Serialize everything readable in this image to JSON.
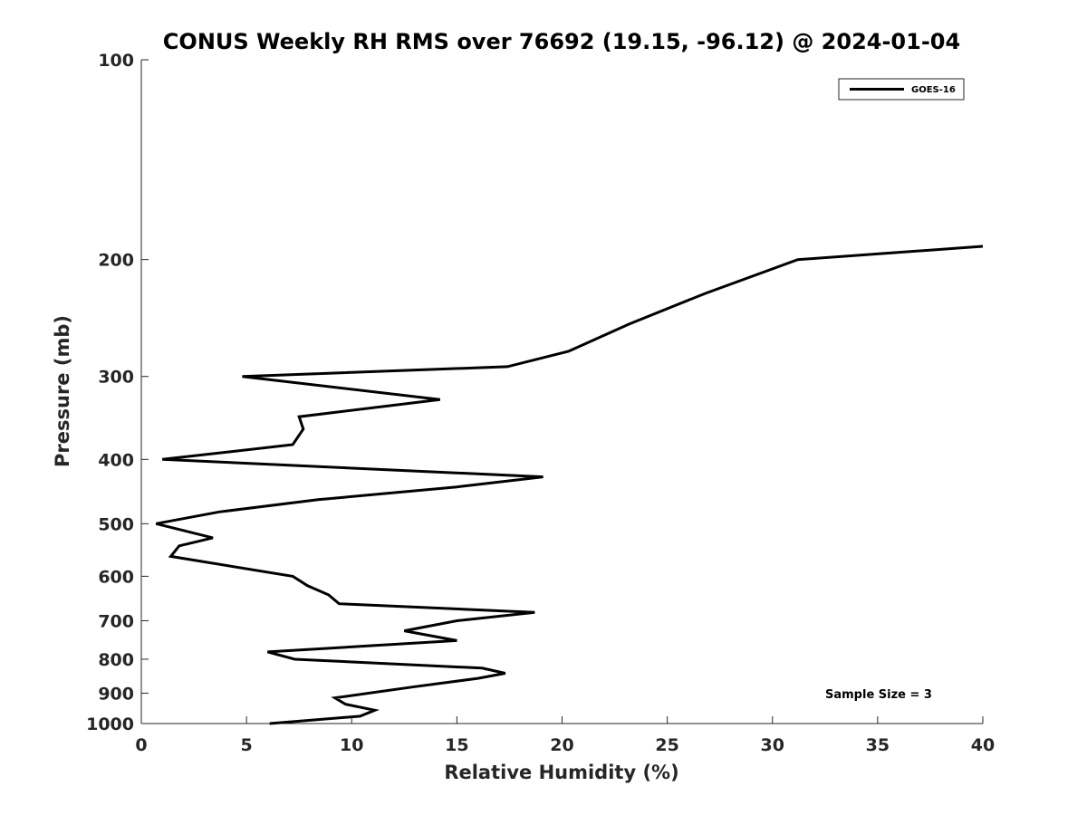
{
  "chart_data": {
    "type": "line",
    "title": "CONUS Weekly RH RMS over 76692 (19.15, -96.12) @ 2024-01-04",
    "xlabel": "Relative Humidity (%)",
    "ylabel": "Pressure (mb)",
    "xlim": [
      0,
      40
    ],
    "ylim": [
      100,
      1000
    ],
    "y_scale": "log",
    "y_reversed": true,
    "grid": false,
    "legend_position": "top-right",
    "xticks": [
      0,
      5,
      10,
      15,
      20,
      25,
      30,
      35,
      40
    ],
    "yticks": [
      100,
      200,
      300,
      400,
      500,
      600,
      700,
      800,
      900,
      1000
    ],
    "series": [
      {
        "name": "GOES-16",
        "color": "#000000",
        "points": [
          {
            "x": 40.0,
            "y": 191
          },
          {
            "x": 31.2,
            "y": 200
          },
          {
            "x": 26.8,
            "y": 225
          },
          {
            "x": 23.2,
            "y": 250
          },
          {
            "x": 20.3,
            "y": 275
          },
          {
            "x": 17.4,
            "y": 290
          },
          {
            "x": 4.8,
            "y": 300
          },
          {
            "x": 14.2,
            "y": 325
          },
          {
            "x": 7.5,
            "y": 345
          },
          {
            "x": 7.7,
            "y": 360
          },
          {
            "x": 7.2,
            "y": 380
          },
          {
            "x": 1.0,
            "y": 400
          },
          {
            "x": 19.1,
            "y": 425
          },
          {
            "x": 15.0,
            "y": 440
          },
          {
            "x": 8.4,
            "y": 460
          },
          {
            "x": 3.7,
            "y": 480
          },
          {
            "x": 0.7,
            "y": 500
          },
          {
            "x": 3.4,
            "y": 525
          },
          {
            "x": 1.8,
            "y": 540
          },
          {
            "x": 1.4,
            "y": 560
          },
          {
            "x": 7.2,
            "y": 600
          },
          {
            "x": 7.9,
            "y": 620
          },
          {
            "x": 8.9,
            "y": 640
          },
          {
            "x": 9.4,
            "y": 660
          },
          {
            "x": 18.7,
            "y": 680
          },
          {
            "x": 15.0,
            "y": 700
          },
          {
            "x": 12.5,
            "y": 725
          },
          {
            "x": 15.0,
            "y": 750
          },
          {
            "x": 6.0,
            "y": 780
          },
          {
            "x": 7.3,
            "y": 800
          },
          {
            "x": 16.2,
            "y": 825
          },
          {
            "x": 17.3,
            "y": 840
          },
          {
            "x": 16.0,
            "y": 855
          },
          {
            "x": 13.0,
            "y": 880
          },
          {
            "x": 9.2,
            "y": 915
          },
          {
            "x": 9.7,
            "y": 935
          },
          {
            "x": 11.1,
            "y": 955
          },
          {
            "x": 10.4,
            "y": 975
          },
          {
            "x": 6.1,
            "y": 1000
          }
        ]
      }
    ],
    "annotations": [
      "Sample Size = 3"
    ]
  }
}
